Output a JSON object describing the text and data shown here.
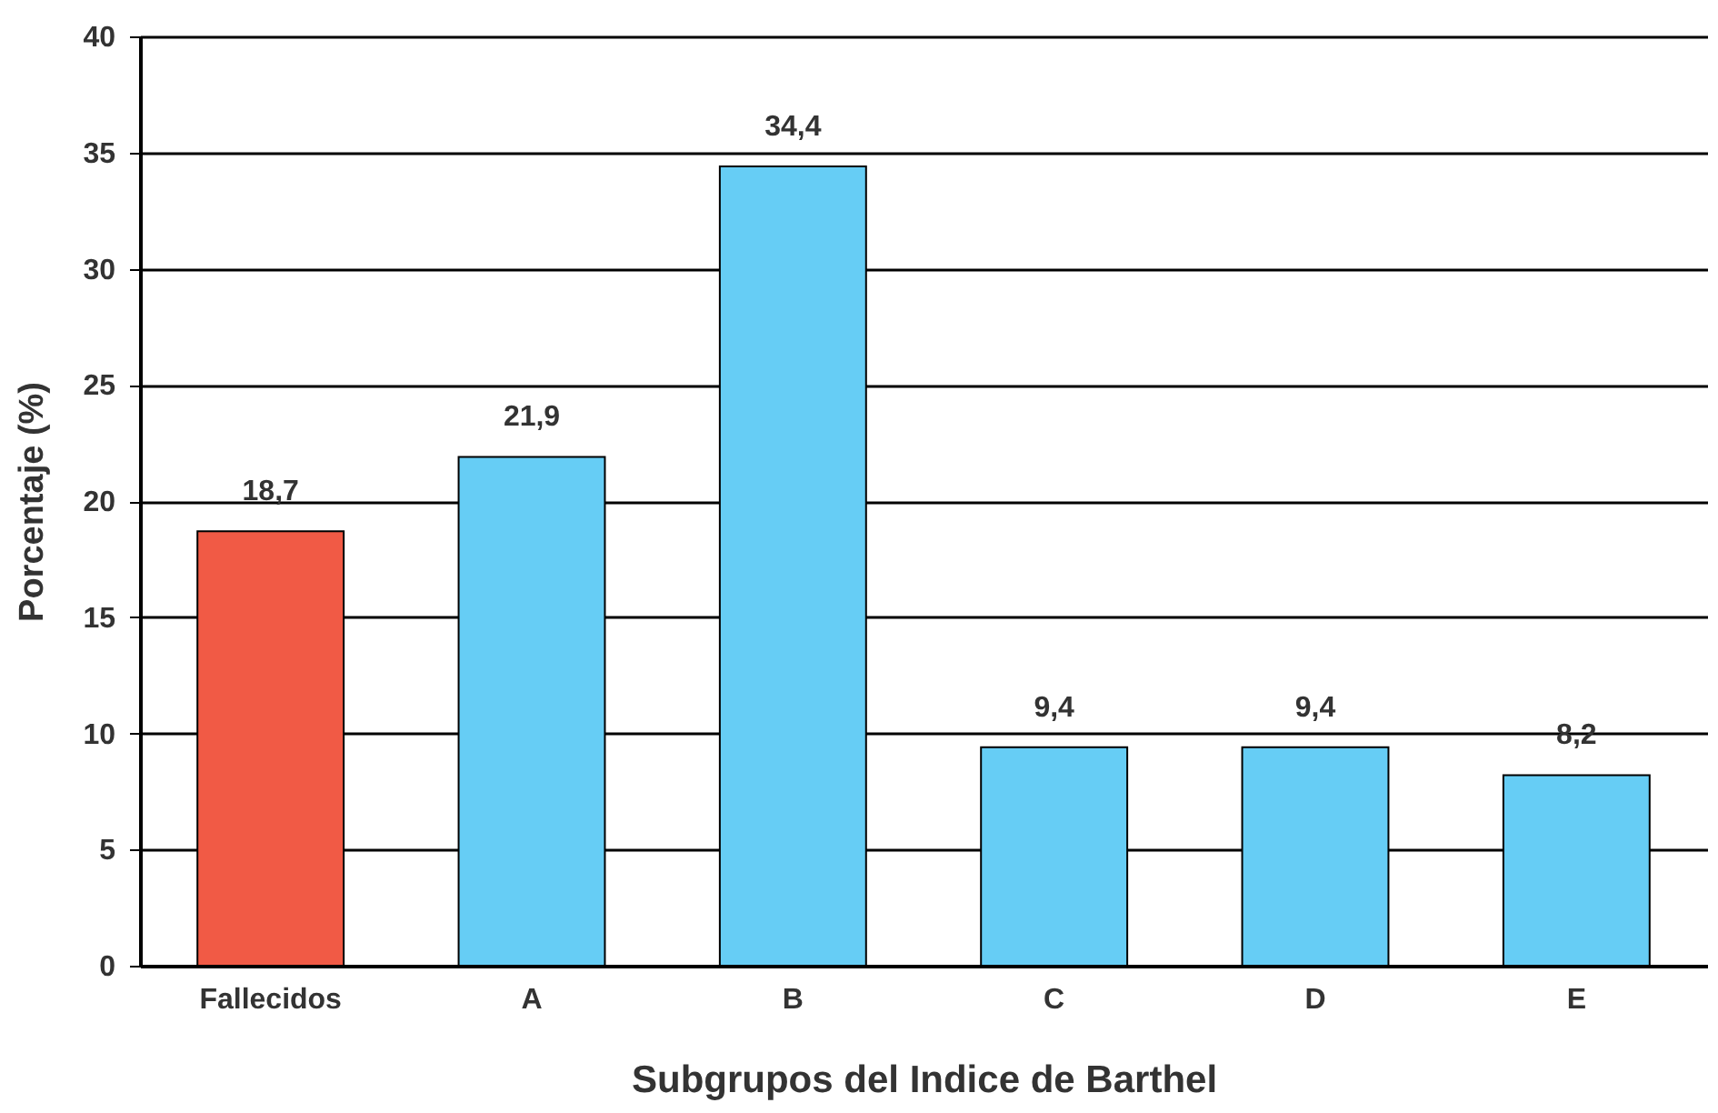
{
  "chart_data": {
    "type": "bar",
    "xlabel": "Subgrupos del Indice de Barthel",
    "ylabel": "Porcentaje (%)",
    "categories": [
      "Fallecidos",
      "A",
      "B",
      "C",
      "D",
      "E"
    ],
    "values": [
      18.7,
      21.9,
      34.4,
      9.4,
      9.4,
      8.2
    ],
    "value_labels": [
      "18,7",
      "21,9",
      "34,4",
      "9,4",
      "9,4",
      "8,2"
    ],
    "colors": [
      "#f15a45",
      "#66cdf5",
      "#66cdf5",
      "#66cdf5",
      "#66cdf5",
      "#66cdf5"
    ],
    "ylim": [
      0,
      40
    ],
    "yticks": [
      0,
      5,
      10,
      15,
      20,
      25,
      30,
      35,
      40
    ],
    "grid": "y",
    "legend": false
  }
}
